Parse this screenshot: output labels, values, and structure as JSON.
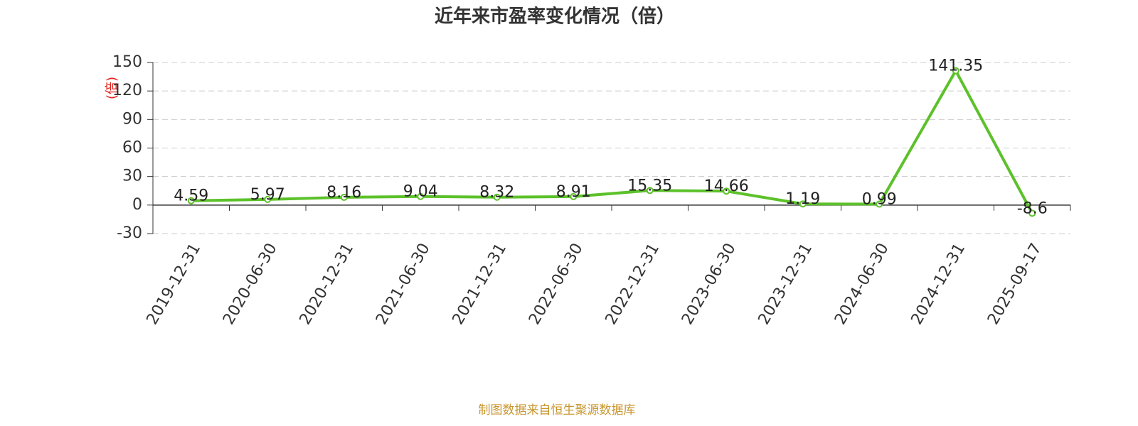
{
  "chart_data": {
    "type": "line",
    "title": "近年来市盈率变化情况（倍）",
    "y_label": "(倍)",
    "source": "制图数据来自恒生聚源数据库",
    "categories": [
      "2019-12-31",
      "2020-06-30",
      "2020-12-31",
      "2021-06-30",
      "2021-12-31",
      "2022-06-30",
      "2022-12-31",
      "2023-06-30",
      "2023-12-31",
      "2024-06-30",
      "2024-12-31",
      "2025-09-17"
    ],
    "series": [
      {
        "name": "市盈率",
        "color": "#5cc12a",
        "values": [
          4.59,
          5.97,
          8.16,
          9.04,
          8.32,
          8.91,
          15.35,
          14.66,
          1.19,
          0.99,
          141.35,
          -8.6
        ]
      }
    ],
    "ylim": [
      -30,
      150
    ],
    "yticks": [
      -30,
      0,
      30,
      60,
      90,
      120,
      150
    ],
    "grid": true
  }
}
